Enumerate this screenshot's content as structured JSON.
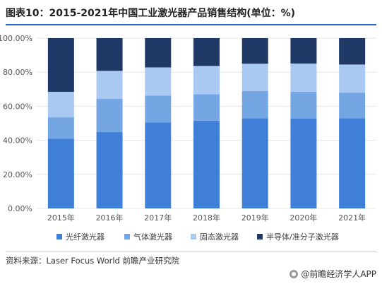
{
  "title": "图表10：2015-2021年中国工业激光器产品销售结构(单位：%)",
  "source": "资料来源：Laser Focus World 前瞻产业研究院",
  "brand": "@前瞻经济学人APP",
  "colors": {
    "title_rule": "#2c6cc4",
    "grid": "#e6e6e6"
  },
  "chart_data": {
    "type": "bar",
    "stacked": true,
    "categories": [
      "2015年",
      "2016年",
      "2017年",
      "2018年",
      "2019年",
      "2020年",
      "2021年"
    ],
    "ylim": [
      0,
      100
    ],
    "yticks": [
      "0.00%",
      "20.00%",
      "40.00%",
      "60.00%",
      "80.00%",
      "100.00%"
    ],
    "grid": true,
    "legend_position": "bottom",
    "series": [
      {
        "name": "光纤激光器",
        "color": "#3f7fd8",
        "values": [
          41,
          44.8,
          50.5,
          51.5,
          53,
          52.7,
          53
        ]
      },
      {
        "name": "气体激光器",
        "color": "#74a6e4",
        "values": [
          12.5,
          19.5,
          15.8,
          15.5,
          16,
          15.8,
          15
        ]
      },
      {
        "name": "固态激光器",
        "color": "#a9c8f2",
        "values": [
          15,
          16.5,
          16.5,
          16.7,
          16,
          16.6,
          16.5
        ]
      },
      {
        "name": "半导体/准分子激光器",
        "color": "#1f3866",
        "values": [
          31.5,
          19.2,
          17.2,
          16.3,
          15,
          14.9,
          15.5
        ]
      }
    ]
  }
}
